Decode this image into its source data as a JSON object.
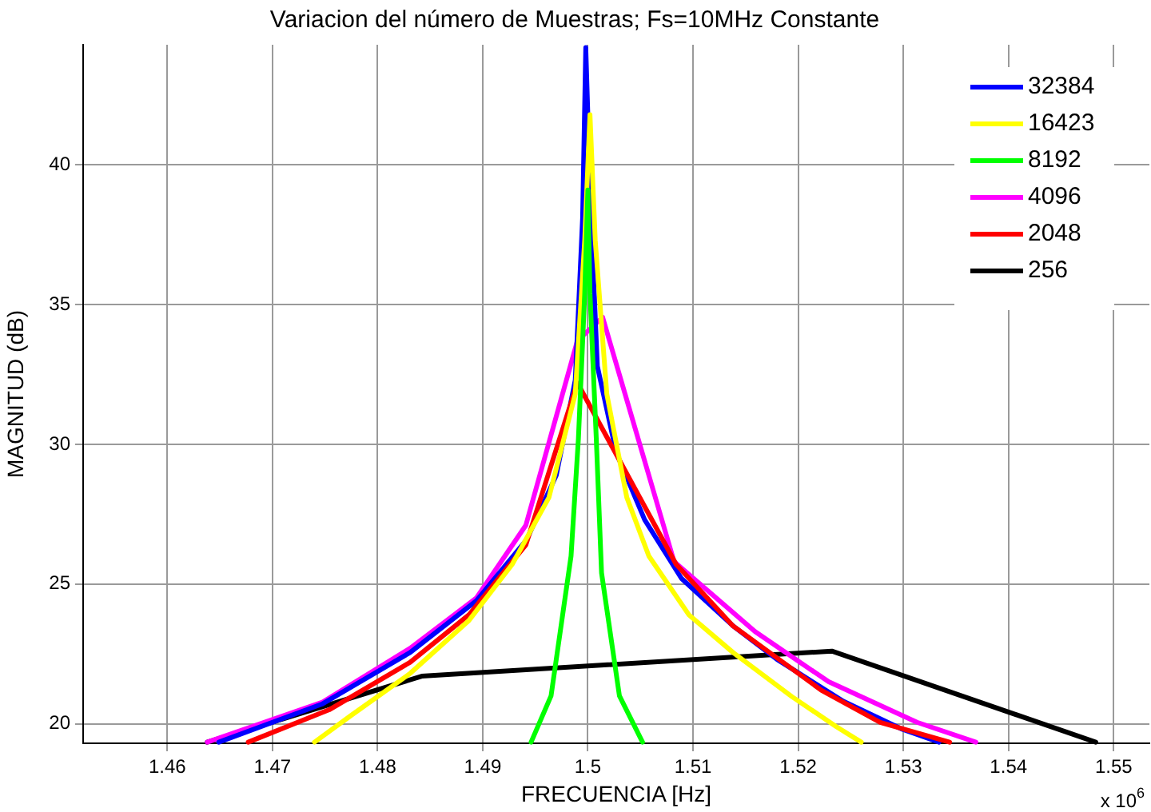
{
  "chart_data": {
    "type": "line",
    "title": "Variacion del número de Muestras; Fs=10MHz Constante",
    "xlabel": "FRECUENCIA [Hz]",
    "ylabel": "MAGNITUD (dB)",
    "annotations": [
      "x 10$^{6}$"
    ],
    "xlim": [
      1.452,
      1.5534
    ],
    "xticks": [
      1.46,
      1.47,
      1.48,
      1.49,
      1.5,
      1.51,
      1.52,
      1.53,
      1.54,
      1.55
    ],
    "ylim": [
      19.3,
      44.3
    ],
    "yticks": [
      20,
      25,
      30,
      35,
      40
    ],
    "grid": true,
    "legend": "top right",
    "marker": "none",
    "line_style": "solid",
    "series": [
      {
        "name": "32384",
        "color": "#0000ff",
        "x": [
          1.4649,
          1.4747,
          1.4831,
          1.4894,
          1.4942,
          1.497,
          1.4988,
          1.4995,
          1.4998,
          1.5003,
          1.5009,
          1.5027,
          1.5054,
          1.5089,
          1.5138,
          1.518,
          1.5243,
          1.5299,
          1.5334
        ],
        "values": [
          19.34,
          20.7,
          22.55,
          24.4,
          26.6,
          28.9,
          32.3,
          38.1,
          44.2,
          38.1,
          32.8,
          29.7,
          27.3,
          25.2,
          23.5,
          22.3,
          20.8,
          19.8,
          19.34
        ]
      },
      {
        "name": "16423",
        "color": "#ffff00",
        "x": [
          1.474,
          1.4775,
          1.4831,
          1.4887,
          1.4928,
          1.4963,
          1.4988,
          1.4997,
          1.5002,
          1.5007,
          1.5018,
          1.5037,
          1.5058,
          1.5096,
          1.5138,
          1.5194,
          1.5236,
          1.526
        ],
        "values": [
          19.34,
          20.3,
          21.8,
          23.7,
          25.7,
          28.1,
          31.8,
          37.3,
          41.8,
          37.3,
          31.8,
          28.1,
          26.0,
          23.9,
          22.55,
          20.97,
          19.9,
          19.34
        ]
      },
      {
        "name": "8192",
        "color": "#00ff00",
        "x": [
          1.4946,
          1.4965,
          1.4984,
          1.4991,
          1.4997,
          1.5,
          1.5002,
          1.5008,
          1.5013,
          1.503,
          1.5052
        ],
        "values": [
          19.34,
          21.0,
          26.0,
          30.2,
          35.4,
          39.1,
          35.4,
          30.2,
          25.4,
          21.0,
          19.34
        ]
      },
      {
        "name": "4096",
        "color": "#ff00ff",
        "x": [
          1.4638,
          1.4747,
          1.4831,
          1.4894,
          1.4941,
          1.499,
          1.5014,
          1.5082,
          1.5159,
          1.5229,
          1.5313,
          1.5369
        ],
        "values": [
          19.34,
          20.76,
          22.7,
          24.5,
          27.1,
          33.7,
          34.55,
          25.8,
          23.3,
          21.5,
          20.05,
          19.34
        ]
      },
      {
        "name": "2048",
        "color": "#ff0000",
        "x": [
          1.4677,
          1.4754,
          1.4831,
          1.4887,
          1.4941,
          1.499,
          1.5084,
          1.5138,
          1.5222,
          1.5278,
          1.5344
        ],
        "values": [
          19.34,
          20.5,
          22.2,
          23.9,
          26.4,
          32.2,
          25.7,
          23.5,
          21.2,
          20.05,
          19.34
        ]
      },
      {
        "name": "256",
        "color": "#000000",
        "x": [
          1.4638,
          1.4842,
          1.5232,
          1.5483
        ],
        "values": [
          19.34,
          21.7,
          22.6,
          19.34
        ]
      }
    ]
  }
}
